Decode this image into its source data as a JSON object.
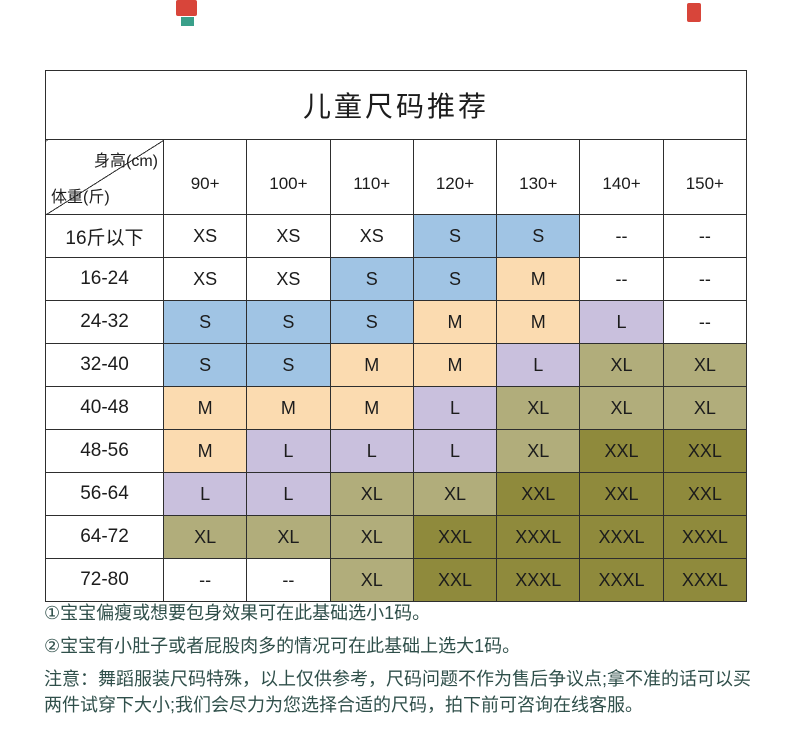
{
  "chart_data": {
    "type": "table",
    "title": "儿童尺码推荐",
    "corner_top": "身高(cm)",
    "corner_bottom": "体重(斤)",
    "columns": [
      "90+",
      "100+",
      "110+",
      "120+",
      "130+",
      "140+",
      "150+"
    ],
    "rows": [
      {
        "label": "16斤以下",
        "cells": [
          {
            "t": "XS",
            "c": "white"
          },
          {
            "t": "XS",
            "c": "white"
          },
          {
            "t": "XS",
            "c": "white"
          },
          {
            "t": "S",
            "c": "blue"
          },
          {
            "t": "S",
            "c": "blue"
          },
          {
            "t": "--",
            "c": "white"
          },
          {
            "t": "--",
            "c": "white"
          }
        ]
      },
      {
        "label": "16-24",
        "cells": [
          {
            "t": "XS",
            "c": "white"
          },
          {
            "t": "XS",
            "c": "white"
          },
          {
            "t": "S",
            "c": "blue"
          },
          {
            "t": "S",
            "c": "blue"
          },
          {
            "t": "M",
            "c": "orange"
          },
          {
            "t": "--",
            "c": "white"
          },
          {
            "t": "--",
            "c": "white"
          }
        ]
      },
      {
        "label": "24-32",
        "cells": [
          {
            "t": "S",
            "c": "blue"
          },
          {
            "t": "S",
            "c": "blue"
          },
          {
            "t": "S",
            "c": "blue"
          },
          {
            "t": "M",
            "c": "orange"
          },
          {
            "t": "M",
            "c": "orange"
          },
          {
            "t": "L",
            "c": "purple"
          },
          {
            "t": "--",
            "c": "white"
          }
        ]
      },
      {
        "label": "32-40",
        "cells": [
          {
            "t": "S",
            "c": "blue"
          },
          {
            "t": "S",
            "c": "blue"
          },
          {
            "t": "M",
            "c": "orange"
          },
          {
            "t": "M",
            "c": "orange"
          },
          {
            "t": "L",
            "c": "purple"
          },
          {
            "t": "XL",
            "c": "olive"
          },
          {
            "t": "XL",
            "c": "olive"
          }
        ]
      },
      {
        "label": "40-48",
        "cells": [
          {
            "t": "M",
            "c": "orange"
          },
          {
            "t": "M",
            "c": "orange"
          },
          {
            "t": "M",
            "c": "orange"
          },
          {
            "t": "L",
            "c": "purple"
          },
          {
            "t": "XL",
            "c": "olive"
          },
          {
            "t": "XL",
            "c": "olive"
          },
          {
            "t": "XL",
            "c": "olive"
          }
        ]
      },
      {
        "label": "48-56",
        "cells": [
          {
            "t": "M",
            "c": "orange"
          },
          {
            "t": "L",
            "c": "purple"
          },
          {
            "t": "L",
            "c": "purple"
          },
          {
            "t": "L",
            "c": "purple"
          },
          {
            "t": "XL",
            "c": "olive"
          },
          {
            "t": "XXL",
            "c": "darkolive"
          },
          {
            "t": "XXL",
            "c": "darkolive"
          }
        ]
      },
      {
        "label": "56-64",
        "cells": [
          {
            "t": "L",
            "c": "purple"
          },
          {
            "t": "L",
            "c": "purple"
          },
          {
            "t": "XL",
            "c": "olive"
          },
          {
            "t": "XL",
            "c": "olive"
          },
          {
            "t": "XXL",
            "c": "darkolive"
          },
          {
            "t": "XXL",
            "c": "darkolive"
          },
          {
            "t": "XXL",
            "c": "darkolive"
          }
        ]
      },
      {
        "label": "64-72",
        "cells": [
          {
            "t": "XL",
            "c": "olive"
          },
          {
            "t": "XL",
            "c": "olive"
          },
          {
            "t": "XL",
            "c": "olive"
          },
          {
            "t": "XXL",
            "c": "darkolive"
          },
          {
            "t": "XXXL",
            "c": "darkolive"
          },
          {
            "t": "XXXL",
            "c": "darkolive"
          },
          {
            "t": "XXXL",
            "c": "darkolive"
          }
        ]
      },
      {
        "label": "72-80",
        "cells": [
          {
            "t": "--",
            "c": "white"
          },
          {
            "t": "--",
            "c": "white"
          },
          {
            "t": "XL",
            "c": "olive"
          },
          {
            "t": "XXL",
            "c": "darkolive"
          },
          {
            "t": "XXXL",
            "c": "darkolive"
          },
          {
            "t": "XXXL",
            "c": "darkolive"
          },
          {
            "t": "XXXL",
            "c": "darkolive"
          }
        ]
      }
    ]
  },
  "notes": [
    "①宝宝偏瘦或想要包身效果可在此基础选小1码。",
    "②宝宝有小肚子或者屁股肉多的情况可在此基础上选大1码。",
    "注意：舞蹈服装尺码特殊，以上仅供参考，尺码问题不作为售后争议点;拿不准的话可以买两件试穿下大小;我们会尽力为您选择合适的尺码，拍下前可咨询在线客服。"
  ],
  "colors": {
    "white": "#ffffff",
    "blue": "#a0c4e4",
    "orange": "#fbdbb0",
    "purple": "#c9c0dd",
    "olive": "#b1ad7b",
    "darkolive": "#8f8a3c",
    "border": "#2e2e2e",
    "note_text": "#2f4f4a",
    "wm_red": "#d8453a",
    "wm_teal": "#3aa08a"
  }
}
